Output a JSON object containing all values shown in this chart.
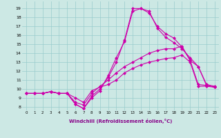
{
  "xlabel": "Windchill (Refroidissement éolien,°C)",
  "bg_color": "#cce8e4",
  "grid_color": "#99cccc",
  "line_color": "#cc00aa",
  "marker": "D",
  "markersize": 2.0,
  "linewidth": 0.8,
  "xlim": [
    -0.5,
    23.5
  ],
  "ylim": [
    7.6,
    19.8
  ],
  "xticks": [
    0,
    1,
    2,
    3,
    4,
    5,
    6,
    7,
    8,
    9,
    10,
    11,
    12,
    13,
    14,
    15,
    16,
    17,
    18,
    19,
    20,
    21,
    22,
    23
  ],
  "yticks": [
    8,
    9,
    10,
    11,
    12,
    13,
    14,
    15,
    16,
    17,
    18,
    19
  ],
  "series": [
    [
      9.5,
      9.5,
      9.5,
      9.7,
      9.5,
      9.5,
      8.3,
      7.8,
      9.0,
      9.8,
      11.5,
      13.5,
      15.3,
      18.7,
      19.0,
      18.5,
      17.0,
      16.2,
      15.7,
      14.7,
      13.2,
      12.5,
      10.4,
      10.2
    ],
    [
      9.5,
      9.5,
      9.5,
      9.7,
      9.5,
      9.5,
      8.3,
      7.8,
      9.2,
      10.0,
      11.3,
      13.0,
      15.5,
      19.0,
      19.0,
      18.7,
      16.8,
      15.8,
      15.2,
      14.5,
      13.5,
      12.5,
      10.5,
      10.3
    ],
    [
      9.5,
      9.5,
      9.5,
      9.7,
      9.5,
      9.5,
      8.5,
      8.2,
      9.5,
      10.3,
      11.0,
      11.8,
      12.5,
      13.0,
      13.5,
      14.0,
      14.3,
      14.5,
      14.5,
      14.8,
      13.2,
      10.5,
      10.4,
      10.2
    ],
    [
      9.5,
      9.5,
      9.5,
      9.7,
      9.5,
      9.5,
      9.0,
      8.5,
      9.8,
      10.2,
      10.5,
      11.0,
      11.8,
      12.3,
      12.7,
      13.0,
      13.2,
      13.4,
      13.5,
      13.8,
      13.0,
      10.3,
      10.3,
      10.2
    ]
  ]
}
